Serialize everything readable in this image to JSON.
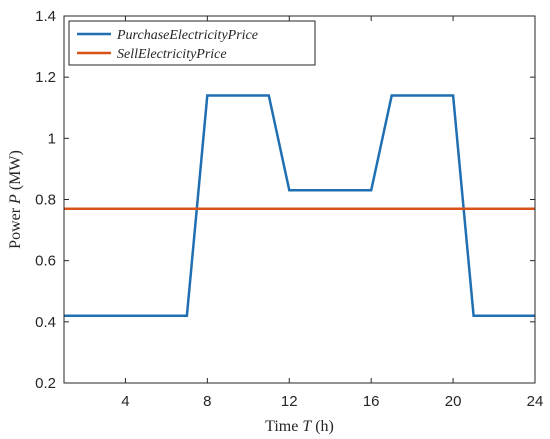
{
  "chart_data": {
    "type": "line",
    "title": "",
    "xlabel_prefix": "Time ",
    "xlabel_var": "T",
    "xlabel_unit": " (h)",
    "ylabel_prefix": "Power ",
    "ylabel_var": "P",
    "ylabel_unit": " (MW)",
    "xlim": [
      1,
      24
    ],
    "ylim": [
      0.2,
      1.4
    ],
    "xticks": [
      4,
      8,
      12,
      16,
      20,
      24
    ],
    "yticks": [
      0.2,
      0.4,
      0.6,
      0.8,
      1,
      1.2,
      1.4
    ],
    "grid": false,
    "legend_position": "top-left",
    "series": [
      {
        "name": "PurchaseElectricityPrice",
        "color": "#1f6fb2",
        "x": [
          1,
          2,
          3,
          4,
          5,
          6,
          7,
          8,
          9,
          10,
          11,
          12,
          13,
          14,
          15,
          16,
          17,
          18,
          19,
          20,
          21,
          22,
          23,
          24
        ],
        "y": [
          0.42,
          0.42,
          0.42,
          0.42,
          0.42,
          0.42,
          0.42,
          1.14,
          1.14,
          1.14,
          1.14,
          0.83,
          0.83,
          0.83,
          0.83,
          0.83,
          1.14,
          1.14,
          1.14,
          1.14,
          0.42,
          0.42,
          0.42,
          0.42
        ]
      },
      {
        "name": "SellElectricityPrice",
        "color": "#d95319",
        "x": [
          1,
          24
        ],
        "y": [
          0.77,
          0.77
        ]
      }
    ]
  }
}
